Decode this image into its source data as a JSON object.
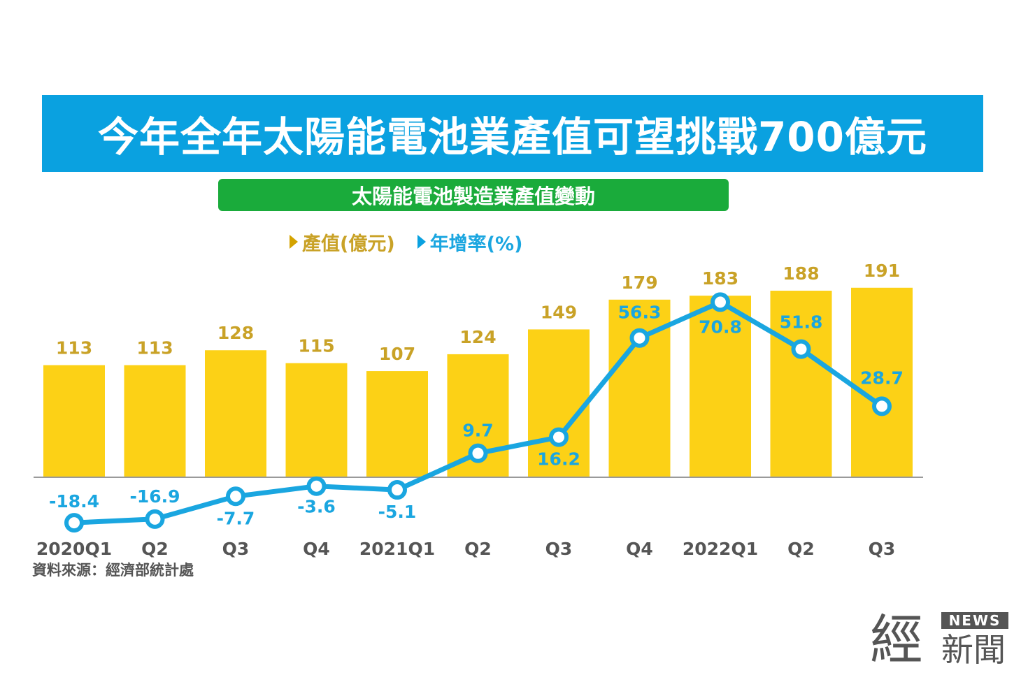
{
  "title": "今年全年太陽能電池業產值可望挑戰700億元",
  "subtitle": "太陽能電池製造業產值變動",
  "legend": {
    "value_label": "產值(億元)",
    "growth_label": "年增率(%)"
  },
  "source": "資料來源：經濟部統計處",
  "logo": {
    "main": "經",
    "news": "NEWS",
    "sub": "新聞"
  },
  "colors": {
    "bar": "#fcd116",
    "bar_label": "#c9a227",
    "line": "#1aa6e0",
    "title_bg": "#0aa1e0",
    "subtitle_bg": "#1aab3b"
  },
  "chart_data": {
    "type": "bar",
    "categories": [
      "2020Q1",
      "Q2",
      "Q3",
      "Q4",
      "2021Q1",
      "Q2",
      "Q3",
      "Q4",
      "2022Q1",
      "Q2",
      "Q3"
    ],
    "series": [
      {
        "name": "產值(億元)",
        "type": "bar",
        "values": [
          113,
          113,
          128,
          115,
          107,
          124,
          149,
          179,
          183,
          188,
          191
        ]
      },
      {
        "name": "年增率(%)",
        "type": "line",
        "values": [
          -18.4,
          -16.9,
          -7.7,
          -3.6,
          -5.1,
          9.7,
          16.2,
          56.3,
          70.8,
          51.8,
          28.7
        ]
      }
    ],
    "grid": false,
    "legend_position": "top"
  }
}
